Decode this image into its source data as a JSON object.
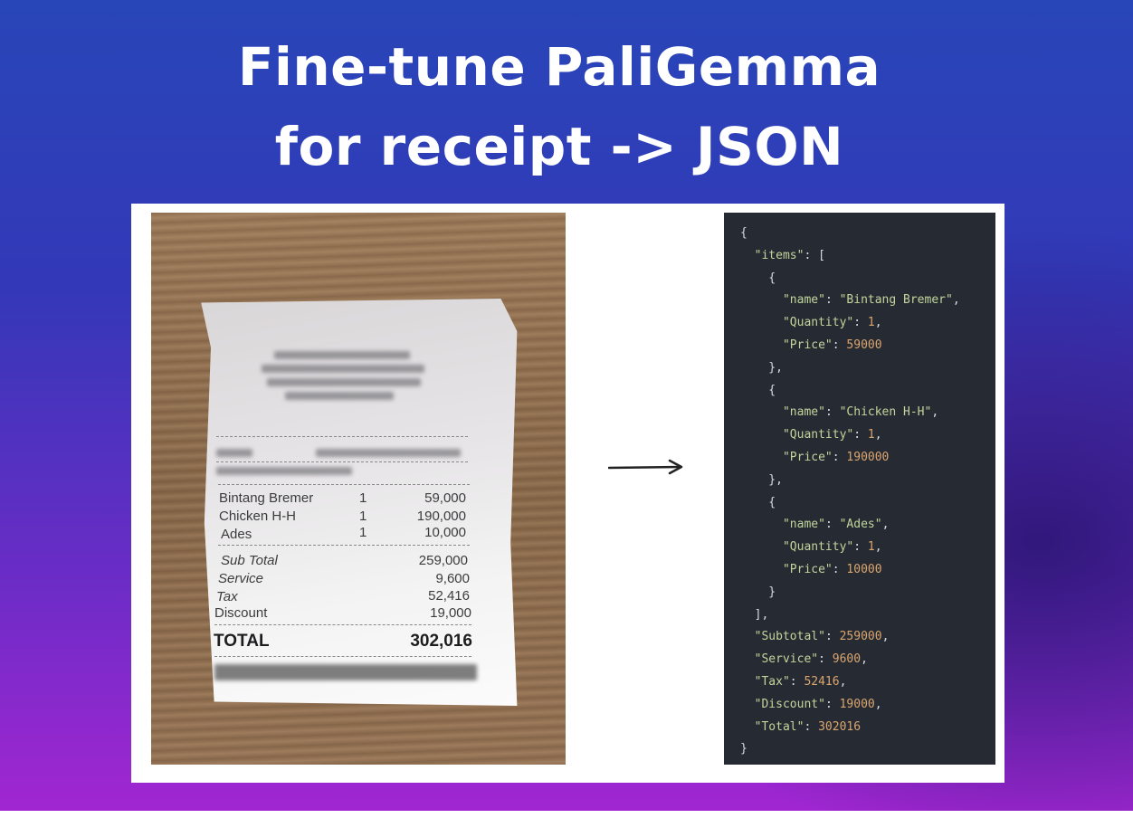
{
  "title": {
    "line1": "Fine-tune PaliGemma",
    "line2": "for receipt -> JSON"
  },
  "receipt": {
    "items": [
      {
        "name": "Bintang Bremer",
        "qty": "1",
        "price": "59,000"
      },
      {
        "name": "Chicken H-H",
        "qty": "1",
        "price": "190,000"
      },
      {
        "name": "Ades",
        "qty": "1",
        "price": "10,000"
      }
    ],
    "summary": [
      {
        "label": "Sub Total",
        "value": "259,000"
      },
      {
        "label": "Service",
        "value": "9,600"
      },
      {
        "label": "Tax",
        "value": "52,416"
      },
      {
        "label": "Discount",
        "value": "19,000"
      }
    ],
    "total_label": "TOTAL",
    "total_value": "302,016"
  },
  "arrow_icon": "arrow-right-icon",
  "colors": {
    "json_key": "#c3d49b",
    "json_number": "#dba56f",
    "code_bg": "#262b33"
  },
  "json_lines": [
    "{",
    "  \"items\": [",
    "    {",
    "      \"name\": \"Bintang Bremer\",",
    "      \"Quantity\": 1,",
    "      \"Price\": 59000",
    "    },",
    "    {",
    "      \"name\": \"Chicken H-H\",",
    "      \"Quantity\": 1,",
    "      \"Price\": 190000",
    "    },",
    "    {",
    "      \"name\": \"Ades\",",
    "      \"Quantity\": 1,",
    "      \"Price\": 10000",
    "    }",
    "  ],",
    "  \"Subtotal\": 259000,",
    "  \"Service\": 9600,",
    "  \"Tax\": 52416,",
    "  \"Discount\": 19000,",
    "  \"Total\": 302016",
    "}"
  ]
}
